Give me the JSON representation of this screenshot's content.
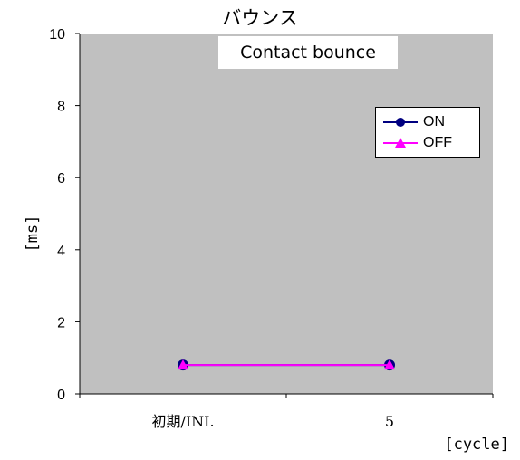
{
  "chart_data": {
    "type": "line",
    "title": "バウンス",
    "subtitle": "Contact bounce",
    "xlabel": "[cycle]",
    "ylabel": "[ms]",
    "categories": [
      "初期/INI.",
      "5"
    ],
    "ylim": [
      0,
      10
    ],
    "yticks": [
      0,
      2,
      4,
      6,
      8,
      10
    ],
    "grid": false,
    "legend_position": "top-right",
    "plot_background": "#c0c0c0",
    "series": [
      {
        "name": "ON",
        "values": [
          0.8,
          0.8
        ],
        "color": "#000080",
        "marker": "circle"
      },
      {
        "name": "OFF",
        "values": [
          0.8,
          0.8
        ],
        "color": "#ff00ff",
        "marker": "triangle"
      }
    ]
  }
}
